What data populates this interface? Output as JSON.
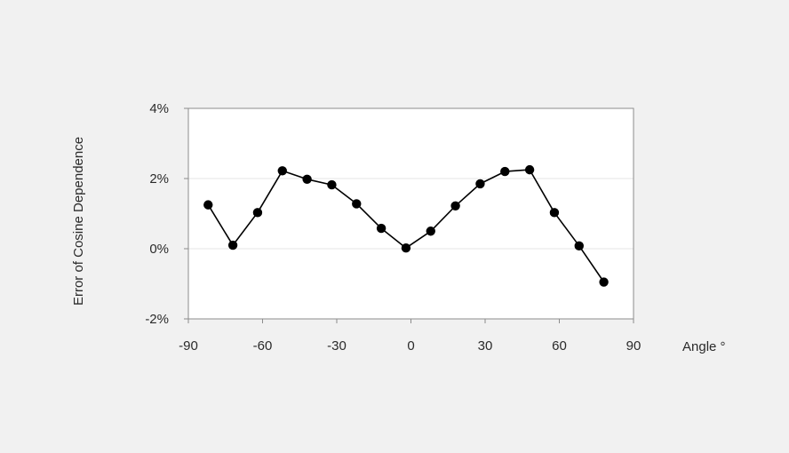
{
  "chart_data": {
    "type": "line",
    "title": "",
    "xlabel": "Angle °",
    "ylabel": "Error of Cosine Dependence",
    "xlim": [
      -90,
      90
    ],
    "ylim": [
      -2,
      4
    ],
    "x_ticks": [
      -90,
      -60,
      -30,
      0,
      30,
      60,
      90
    ],
    "y_ticks": [
      -2,
      0,
      2,
      4
    ],
    "x_tick_labels": [
      "-90",
      "-60",
      "-30",
      "0",
      "30",
      "60",
      "90"
    ],
    "y_tick_labels": [
      "-2%",
      "0%",
      "2%",
      "4%"
    ],
    "grid": "horizontal",
    "legend": "none",
    "marker": "circle",
    "colors": {
      "line": "#000000",
      "marker": "#000000",
      "plot_background": "#ffffff",
      "page_background": "#f1f1f1",
      "frame": "#8c8c8c",
      "grid": "#e6e6e6"
    },
    "series": [
      {
        "x": [
          -82,
          -72,
          -62,
          -52,
          -42,
          -32,
          -22,
          -12,
          -2,
          8,
          18,
          28,
          38,
          48,
          58,
          68,
          78
        ],
        "values": [
          1.25,
          0.1,
          1.03,
          2.22,
          1.98,
          1.82,
          1.28,
          0.58,
          0.02,
          0.5,
          1.22,
          1.85,
          2.2,
          2.25,
          1.03,
          0.08,
          -0.95
        ]
      }
    ]
  }
}
